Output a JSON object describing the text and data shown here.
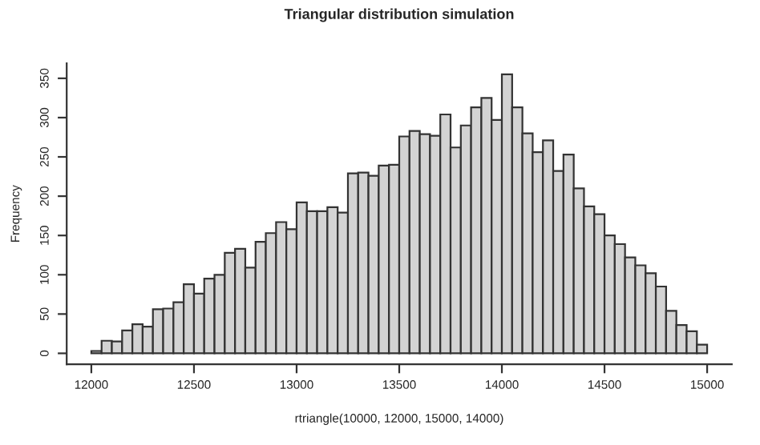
{
  "chart_data": {
    "type": "histogram",
    "title": "Triangular distribution simulation",
    "xlabel": "rtriangle(10000, 12000, 15000, 14000)",
    "ylabel": "Frequency",
    "bins": [
      12000,
      12050,
      12100,
      12150,
      12200,
      12250,
      12300,
      12350,
      12400,
      12450,
      12500,
      12550,
      12600,
      12650,
      12700,
      12750,
      12800,
      12850,
      12900,
      12950,
      13000,
      13050,
      13100,
      13150,
      13200,
      13250,
      13300,
      13350,
      13400,
      13450,
      13500,
      13550,
      13600,
      13650,
      13700,
      13750,
      13800,
      13850,
      13900,
      13950,
      14000,
      14050,
      14100,
      14150,
      14200,
      14250,
      14300,
      14350,
      14400,
      14450,
      14500,
      14550,
      14600,
      14650,
      14700,
      14750,
      14800,
      14850,
      14900,
      14950,
      15000
    ],
    "values": [
      3,
      16,
      15,
      29,
      37,
      34,
      56,
      57,
      65,
      88,
      76,
      95,
      100,
      128,
      133,
      109,
      142,
      153,
      167,
      158,
      192,
      181,
      181,
      186,
      179,
      229,
      230,
      226,
      239,
      240,
      276,
      283,
      279,
      277,
      304,
      262,
      290,
      313,
      325,
      297,
      355,
      313,
      280,
      256,
      271,
      232,
      253,
      210,
      187,
      177,
      150,
      139,
      122,
      112,
      102,
      85,
      54,
      36,
      28,
      11
    ],
    "color": "#d3d3d3",
    "xlim": [
      11880,
      15120
    ],
    "ylim": [
      -14,
      369
    ],
    "xticks": [
      12000,
      12500,
      13000,
      13500,
      14000,
      14500,
      15000
    ],
    "yticks": [
      0,
      50,
      100,
      150,
      200,
      250,
      300,
      350
    ],
    "grid": false,
    "legend": false
  }
}
